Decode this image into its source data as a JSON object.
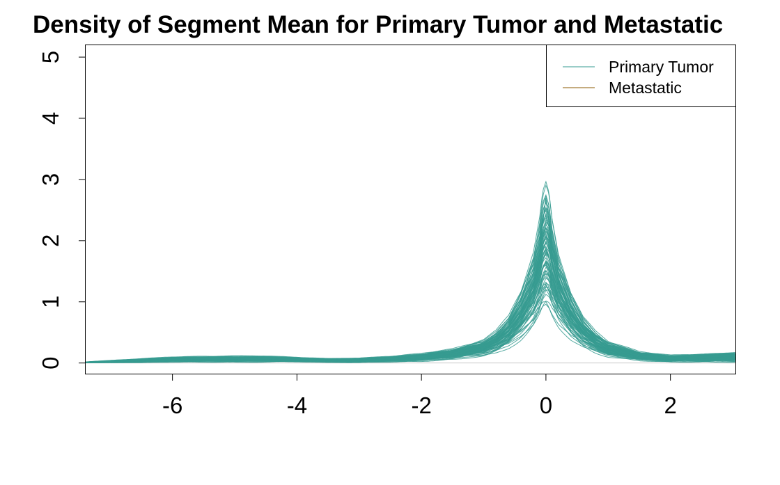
{
  "chart_data": {
    "type": "line",
    "title": "Density of Segment Mean for Primary Tumor and Metastatic",
    "xlabel": "",
    "ylabel": "",
    "xlim": [
      -7.4,
      3.05
    ],
    "ylim": [
      -0.18,
      5.2
    ],
    "x_ticks": [
      -6,
      -4,
      -2,
      0,
      2
    ],
    "x_tick_labels": [
      "-6",
      "-4",
      "-2",
      "0",
      "2"
    ],
    "y_ticks": [
      0,
      1,
      2,
      3,
      4,
      5
    ],
    "y_tick_labels": [
      "0",
      "1",
      "2",
      "3",
      "4",
      "5"
    ],
    "grid": false,
    "legend": {
      "position": "top-right",
      "entries": [
        {
          "label": "Primary Tumor",
          "color": "#369B91"
        },
        {
          "label": "Metastatic",
          "color": "#8B5A00"
        }
      ]
    },
    "series": [
      {
        "name": "Primary Tumor",
        "color": "#369B91",
        "description_of_shape": "overlaid density curves, sharply peaked near 0",
        "x": [
          -7.4,
          -6.5,
          -6.0,
          -5.5,
          -5.0,
          -4.5,
          -4.0,
          -3.5,
          -3.0,
          -2.5,
          -2.0,
          -1.5,
          -1.0,
          -0.8,
          -0.6,
          -0.4,
          -0.2,
          -0.1,
          -0.05,
          0.0,
          0.05,
          0.1,
          0.2,
          0.4,
          0.6,
          0.8,
          1.0,
          1.5,
          2.0,
          2.5,
          3.05
        ],
        "y": [
          0.01,
          0.04,
          0.06,
          0.07,
          0.07,
          0.07,
          0.06,
          0.05,
          0.05,
          0.07,
          0.1,
          0.16,
          0.27,
          0.36,
          0.52,
          0.8,
          1.3,
          1.8,
          2.3,
          2.7,
          2.3,
          1.8,
          1.3,
          0.8,
          0.5,
          0.33,
          0.23,
          0.12,
          0.07,
          0.05,
          0.05
        ],
        "band_low": [
          0.0,
          0.0,
          0.01,
          0.01,
          0.01,
          0.01,
          0.01,
          0.0,
          0.0,
          0.01,
          0.02,
          0.05,
          0.1,
          0.15,
          0.22,
          0.32,
          0.45,
          0.55,
          0.6,
          0.63,
          0.6,
          0.55,
          0.45,
          0.3,
          0.2,
          0.13,
          0.08,
          0.03,
          0.01,
          0.01,
          0.0
        ],
        "band_high": [
          0.02,
          0.08,
          0.11,
          0.12,
          0.12,
          0.12,
          0.1,
          0.08,
          0.09,
          0.12,
          0.17,
          0.25,
          0.4,
          0.55,
          0.8,
          1.25,
          1.9,
          2.5,
          2.95,
          3.12,
          2.95,
          2.5,
          1.9,
          1.25,
          0.8,
          0.55,
          0.38,
          0.2,
          0.14,
          0.16,
          0.19
        ]
      }
    ]
  }
}
